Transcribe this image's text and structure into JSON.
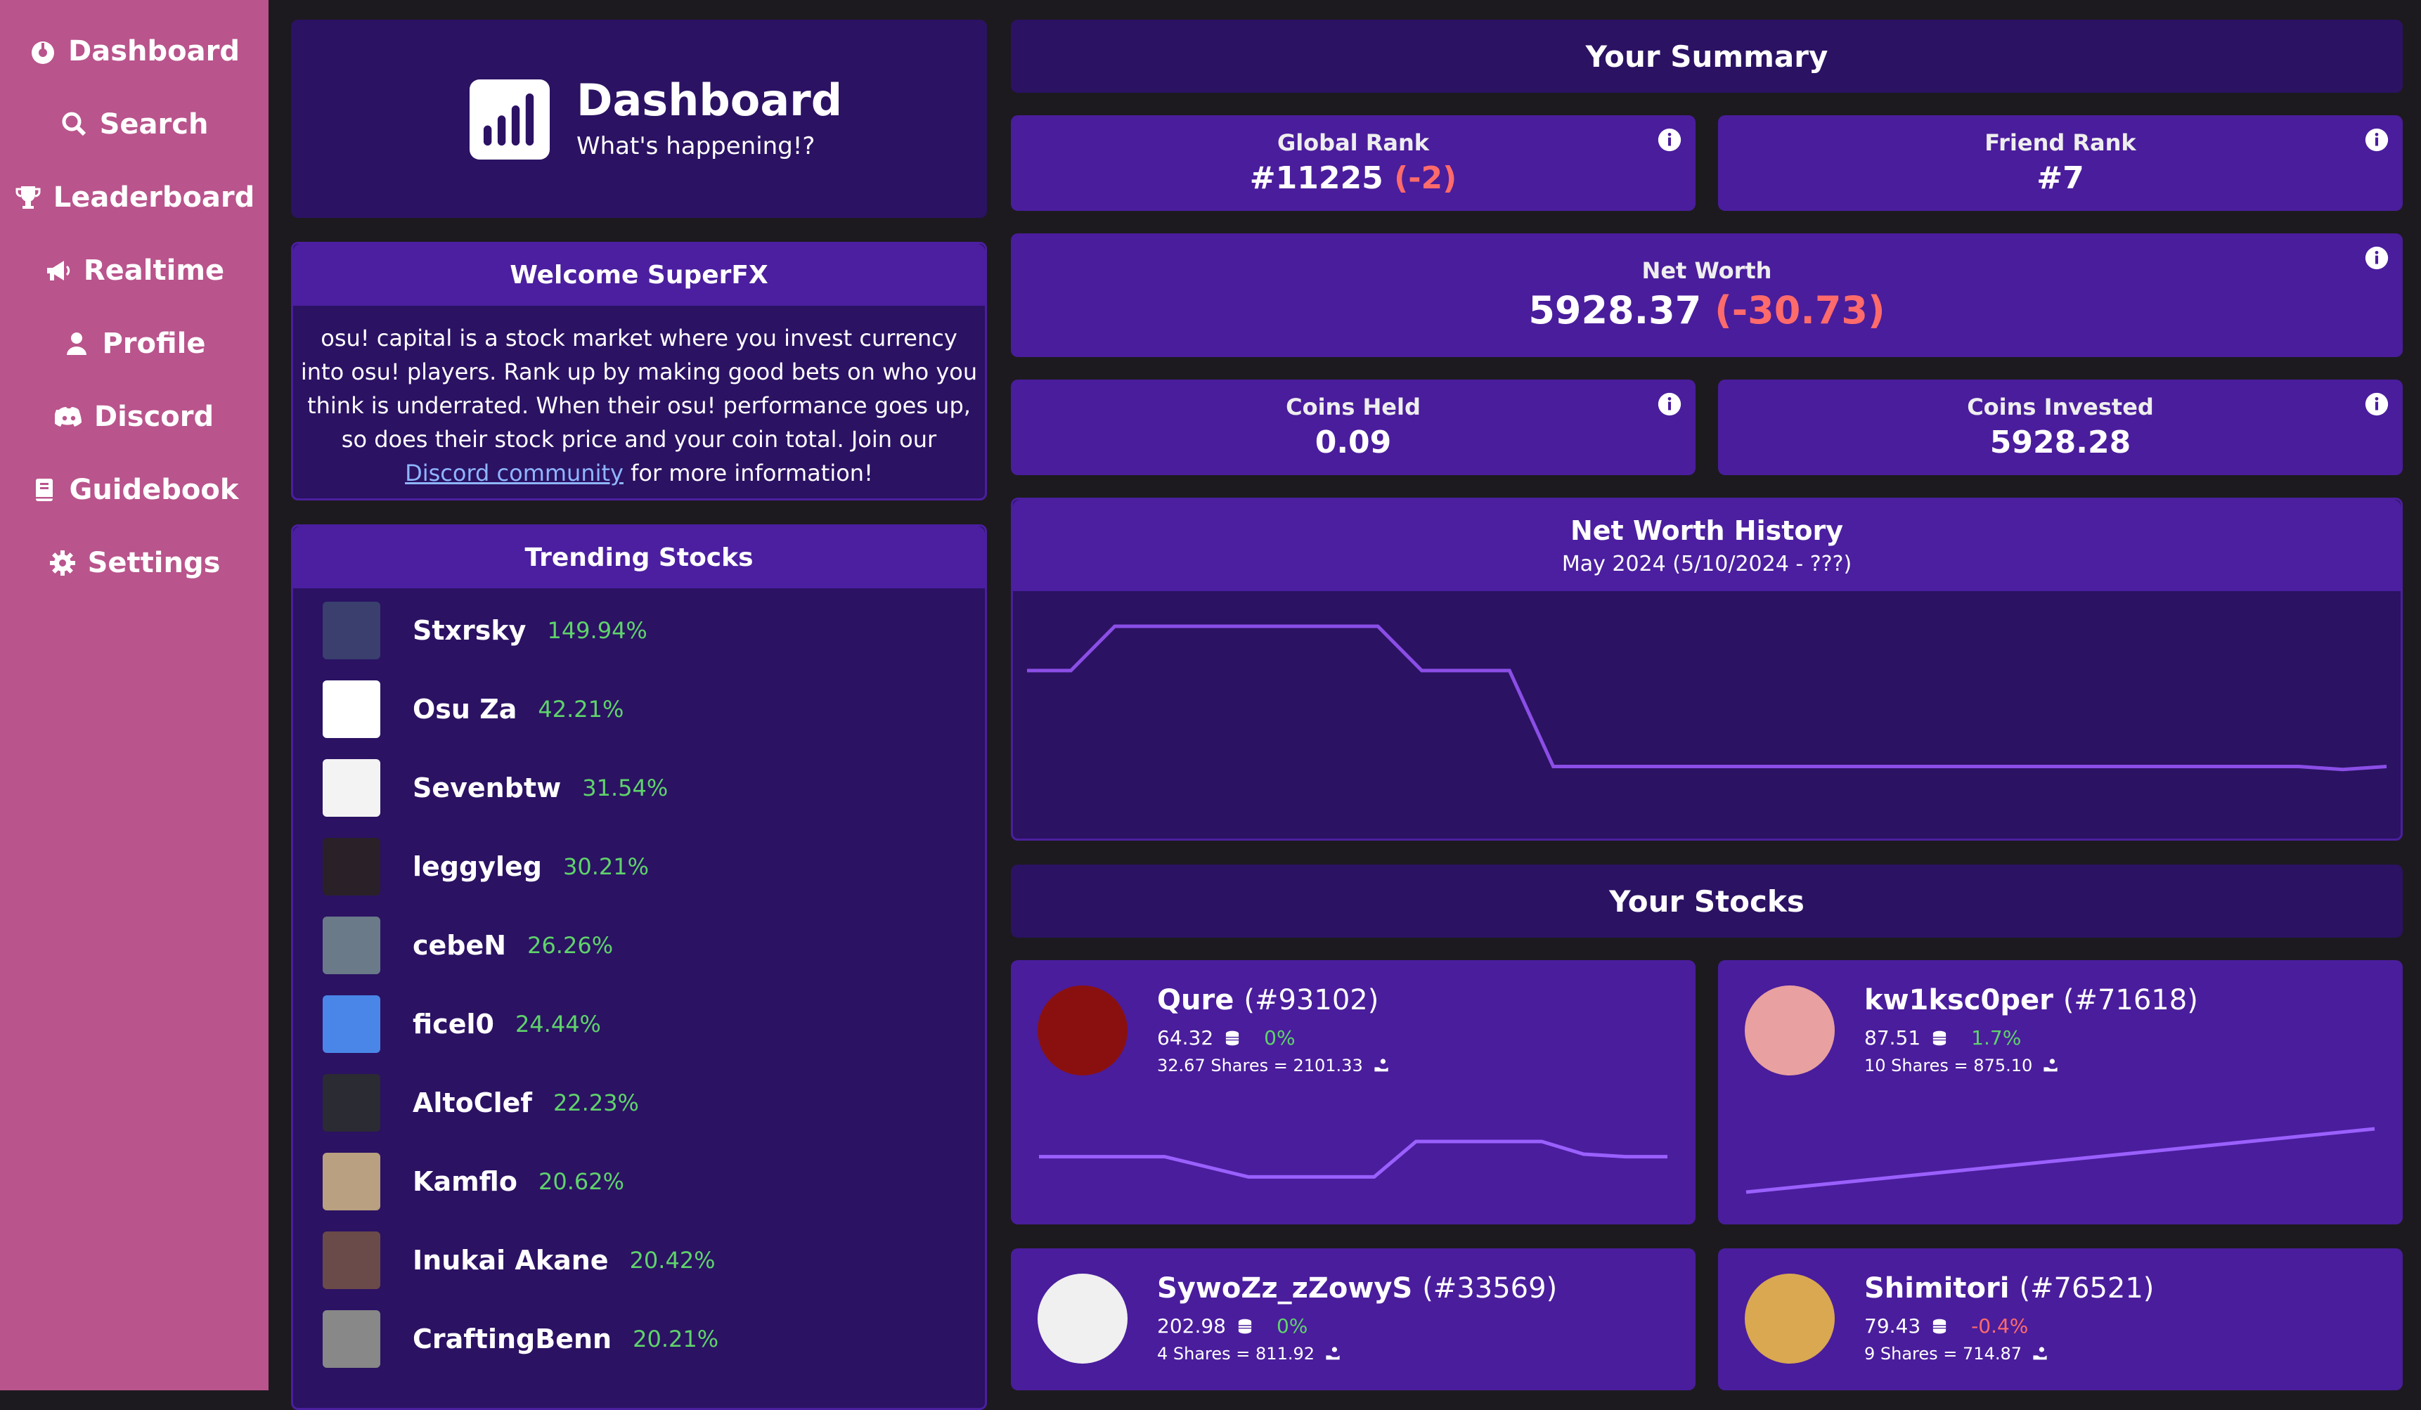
{
  "sidebar": {
    "items": [
      {
        "label": "Dashboard",
        "icon": "dashboard-icon"
      },
      {
        "label": "Search",
        "icon": "search-icon"
      },
      {
        "label": "Leaderboard",
        "icon": "trophy-icon"
      },
      {
        "label": "Realtime",
        "icon": "megaphone-icon"
      },
      {
        "label": "Profile",
        "icon": "user-icon"
      },
      {
        "label": "Discord",
        "icon": "discord-icon"
      },
      {
        "label": "Guidebook",
        "icon": "book-icon"
      },
      {
        "label": "Settings",
        "icon": "gear-icon"
      }
    ]
  },
  "header": {
    "title": "Dashboard",
    "subtitle": "What's happening!?"
  },
  "welcome": {
    "title": "Welcome SuperFX",
    "body_lines": [
      "osu! capital is a stock market where you invest currency",
      "into osu! players. Rank up by making good bets on who you",
      "think is underrated. When their osu! performance goes up,",
      "so does their stock price and your coin total. Join our"
    ],
    "link_text": "Discord community",
    "after_link": " for more information!"
  },
  "trending": {
    "title": "Trending Stocks",
    "items": [
      {
        "name": "Stxrsky",
        "pct": "149.94%"
      },
      {
        "name": "Osu Za",
        "pct": "42.21%"
      },
      {
        "name": "Sevenbtw",
        "pct": "31.54%"
      },
      {
        "name": "leggyleg",
        "pct": "30.21%"
      },
      {
        "name": "cebeN",
        "pct": "26.26%"
      },
      {
        "name": "ficel0",
        "pct": "24.44%"
      },
      {
        "name": "AltoClef",
        "pct": "22.23%"
      },
      {
        "name": "Kamflo",
        "pct": "20.62%"
      },
      {
        "name": "Inukai Akane",
        "pct": "20.42%"
      },
      {
        "name": "CraftingBenn",
        "pct": "20.21%"
      }
    ]
  },
  "summary": {
    "title": "Your Summary",
    "global_rank": {
      "label": "Global Rank",
      "value": "#11225",
      "change": "(-2)"
    },
    "friend_rank": {
      "label": "Friend Rank",
      "value": "#7"
    },
    "net_worth": {
      "label": "Net Worth",
      "value": "5928.37",
      "change": "(-30.73)"
    },
    "coins_held": {
      "label": "Coins Held",
      "value": "0.09"
    },
    "coins_invested": {
      "label": "Coins Invested",
      "value": "5928.28"
    }
  },
  "history": {
    "title": "Net Worth History",
    "subtitle": "May 2024 (5/10/2024 - ???)",
    "values": [
      70,
      70,
      100,
      100,
      100,
      100,
      100,
      100,
      100,
      70,
      70,
      70,
      5,
      5,
      5,
      5,
      5,
      5,
      5,
      5,
      5,
      5,
      5,
      5,
      5,
      5,
      5,
      5,
      5,
      5,
      3,
      5
    ]
  },
  "stocks": {
    "title": "Your Stocks",
    "cards": [
      {
        "name": "Qure",
        "rank": "(#93102)",
        "price": "64.32",
        "change": "0%",
        "shares": "32.67 Shares = 2101.33",
        "trend": [
          48,
          48,
          48,
          48,
          40,
          32,
          32,
          32,
          32,
          60,
          60,
          60,
          60,
          50,
          48,
          48
        ],
        "change_color": "#5fd36b"
      },
      {
        "name": "kw1ksc0per",
        "rank": "(#71618)",
        "price": "87.51",
        "change": "1.7%",
        "shares": "10 Shares = 875.10",
        "trend": [
          20,
          25,
          30,
          35,
          40,
          45,
          50,
          55,
          60,
          65,
          70
        ],
        "change_color": "#5fd36b"
      },
      {
        "name": "SywoZz_zZowyS",
        "rank": "(#33569)",
        "price": "202.98",
        "change": "0%",
        "shares": "4 Shares = 811.92",
        "trend": [],
        "change_color": "#5fd36b"
      },
      {
        "name": "Shimitori",
        "rank": "(#76521)",
        "price": "79.43",
        "change": "-0.4%",
        "shares": "9 Shares = 714.87",
        "trend": [],
        "change_color": "#ff6b6b"
      }
    ]
  }
}
